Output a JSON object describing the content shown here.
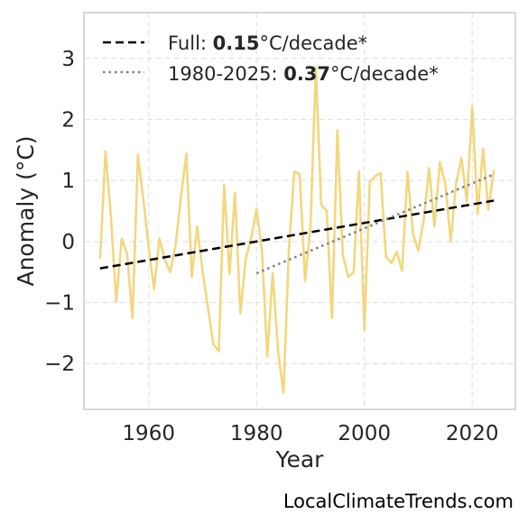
{
  "chart_data": {
    "type": "line",
    "title": "",
    "xlabel": "Year",
    "ylabel": "Anomaly (°C)",
    "xlim": [
      1948,
      2028
    ],
    "ylim": [
      -2.75,
      3.75
    ],
    "xticks": [
      1960,
      1980,
      2000,
      2020
    ],
    "yticks": [
      -2,
      -1,
      0,
      1,
      2,
      3
    ],
    "ytick_labels": [
      "−2",
      "−1",
      "0",
      "1",
      "2",
      "3"
    ],
    "grid": true,
    "legend_position": "top-left",
    "colors": {
      "series": "#f2d77e",
      "full_trend": "#000000",
      "recent_trend": "#808080"
    },
    "series": [
      {
        "x": [
          1951,
          1952,
          1953,
          1954,
          1955,
          1956,
          1957,
          1958,
          1959,
          1960,
          1961,
          1962,
          1963,
          1964,
          1965,
          1966,
          1967,
          1968,
          1969,
          1970,
          1971,
          1972,
          1973,
          1974,
          1975,
          1976,
          1977,
          1978,
          1979,
          1980,
          1981,
          1982,
          1983,
          1984,
          1985,
          1986,
          1987,
          1988,
          1989,
          1990,
          1991,
          1992,
          1993,
          1994,
          1995,
          1996,
          1997,
          1998,
          1999,
          2000,
          2001,
          2002,
          2003,
          2004,
          2005,
          2006,
          2007,
          2008,
          2009,
          2010,
          2011,
          2012,
          2013,
          2014,
          2015,
          2016,
          2017,
          2018,
          2019,
          2020,
          2021,
          2022,
          2023,
          2024
        ],
        "y": [
          -0.28,
          1.48,
          0.4,
          -0.98,
          0.05,
          -0.2,
          -1.26,
          1.42,
          0.7,
          -0.1,
          -0.78,
          0.05,
          -0.3,
          -0.5,
          -0.05,
          0.75,
          1.44,
          -0.58,
          0.25,
          -0.5,
          -1.08,
          -1.68,
          -1.8,
          0.93,
          -0.53,
          0.8,
          -1.18,
          -0.28,
          0.05,
          0.53,
          -0.15,
          -1.88,
          -0.52,
          -1.8,
          -2.48,
          -0.15,
          1.15,
          1.1,
          -0.65,
          0.25,
          2.85,
          0.6,
          0.5,
          -1.25,
          1.82,
          -0.22,
          -0.58,
          -0.5,
          1.15,
          -1.45,
          0.98,
          1.07,
          1.12,
          -0.25,
          -0.35,
          -0.17,
          -0.48,
          1.14,
          0.13,
          -0.15,
          0.35,
          1.2,
          0.25,
          1.3,
          0.95,
          0.0,
          0.95,
          1.37,
          0.65,
          2.22,
          0.45,
          1.52,
          0.52,
          1.17
        ]
      }
    ],
    "trends": [
      {
        "style": "dashed",
        "x": [
          1951,
          2024
        ],
        "y": [
          -0.44,
          0.67
        ],
        "label_prefix": "Full: ",
        "label_value": "0.15",
        "label_suffix": "°C/decade*"
      },
      {
        "style": "dotted",
        "x": [
          1980,
          2024
        ],
        "y": [
          -0.52,
          1.1
        ],
        "label_prefix": "1980-2025: ",
        "label_value": "0.37",
        "label_suffix": "°C/decade*"
      }
    ]
  },
  "watermark": "LocalClimateTrends.com"
}
